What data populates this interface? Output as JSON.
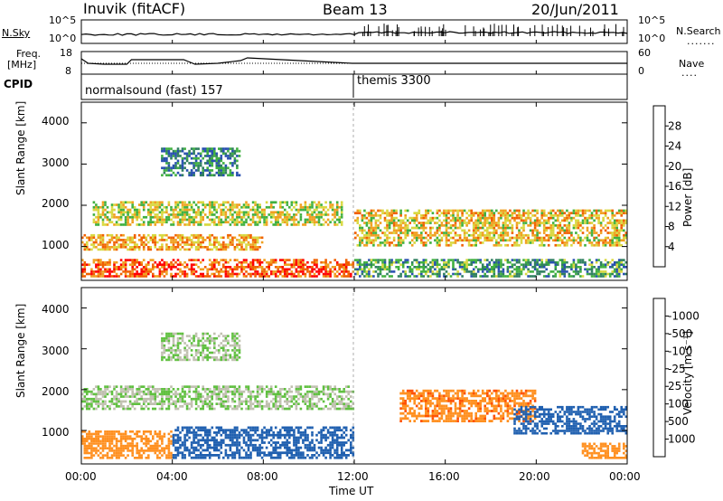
{
  "header": {
    "station": "Inuvik (fitACF)",
    "beam": "Beam 13",
    "date": "20/Jun/2011"
  },
  "top_panel": {
    "left_label": "N.Sky",
    "left_ticks": [
      "10^5",
      "10^0"
    ],
    "right_ticks": [
      "10^5",
      "10^0"
    ],
    "right_label": "N.Search"
  },
  "freq_panel": {
    "left_label_1": "Freq.",
    "left_label_2": "[MHz]",
    "left_ticks": [
      "18",
      "8"
    ],
    "right_ticks": [
      "60",
      "0"
    ],
    "right_label": "Nave"
  },
  "cpid": {
    "label": "CPID",
    "mode1": "normalsound (fast) 157",
    "mode2": "themis 3300"
  },
  "colors": {
    "power_scale": [
      "#2020ff",
      "#2850b0",
      "#308060",
      "#40b040",
      "#d8d840",
      "#f0a020",
      "#f06000",
      "#ff0000"
    ],
    "velocity_scale": [
      "#ff0000",
      "#ff5000",
      "#ff9020",
      "#c0c0b0",
      "#c0c0b0",
      "#60c040",
      "#309060",
      "#2060b0",
      "#1830c0"
    ]
  },
  "chart_data": [
    {
      "type": "heatmap",
      "panel": "power",
      "ylabel": "Slant Range [km]",
      "y_ticks": [
        "1000",
        "2000",
        "3000",
        "4000"
      ],
      "ylim": [
        180,
        4500
      ],
      "x_ticks": [
        "00:00",
        "04:00",
        "08:00",
        "12:00",
        "16:00",
        "20:00",
        "00:00"
      ],
      "colorbar_label": "Power [dB]",
      "colorbar_ticks": [
        "4",
        "8",
        "12",
        "16",
        "20",
        "24",
        "28"
      ],
      "bands": [
        {
          "t0": 0.0,
          "t1": 12.0,
          "r0": 250,
          "r1": 700,
          "value": 26
        },
        {
          "t0": 0.5,
          "t1": 11.5,
          "r0": 1500,
          "r1": 2100,
          "value": 18
        },
        {
          "t0": 0.0,
          "t1": 8.0,
          "r0": 900,
          "r1": 1300,
          "value": 22
        },
        {
          "t0": 3.5,
          "t1": 7.0,
          "r0": 2700,
          "r1": 3400,
          "value": 10
        },
        {
          "t0": 12.0,
          "t1": 24.0,
          "r0": 1000,
          "r1": 1900,
          "value": 20
        },
        {
          "t0": 12.0,
          "t1": 24.0,
          "r0": 250,
          "r1": 700,
          "value": 12
        }
      ]
    },
    {
      "type": "heatmap",
      "panel": "velocity",
      "ylabel": "Slant Range [km]",
      "y_ticks": [
        "1000",
        "2000",
        "3000",
        "4000"
      ],
      "ylim": [
        180,
        4500
      ],
      "x_ticks": [
        "00:00",
        "04:00",
        "08:00",
        "12:00",
        "16:00",
        "20:00",
        "00:00"
      ],
      "xlabel": "Time UT",
      "colorbar_label": "Velocity [m s⁻¹]",
      "colorbar_ticks": [
        "-1000",
        "-500",
        "-100",
        "-25",
        "25",
        "100",
        "500",
        "1000"
      ],
      "bands": [
        {
          "t0": 0.0,
          "t1": 12.0,
          "r0": 1500,
          "r1": 2100,
          "value": 0
        },
        {
          "t0": 0.0,
          "t1": 4.0,
          "r0": 300,
          "r1": 1000,
          "value": -300
        },
        {
          "t0": 4.0,
          "t1": 12.0,
          "r0": 300,
          "r1": 1100,
          "value": 200
        },
        {
          "t0": 3.5,
          "t1": 7.0,
          "r0": 2700,
          "r1": 3400,
          "value": 0
        },
        {
          "t0": 14.0,
          "t1": 20.0,
          "r0": 1200,
          "r1": 2000,
          "value": -400
        },
        {
          "t0": 19.0,
          "t1": 24.0,
          "r0": 900,
          "r1": 1600,
          "value": 300
        },
        {
          "t0": 22.0,
          "t1": 24.0,
          "r0": 300,
          "r1": 700,
          "value": -300
        }
      ]
    }
  ]
}
